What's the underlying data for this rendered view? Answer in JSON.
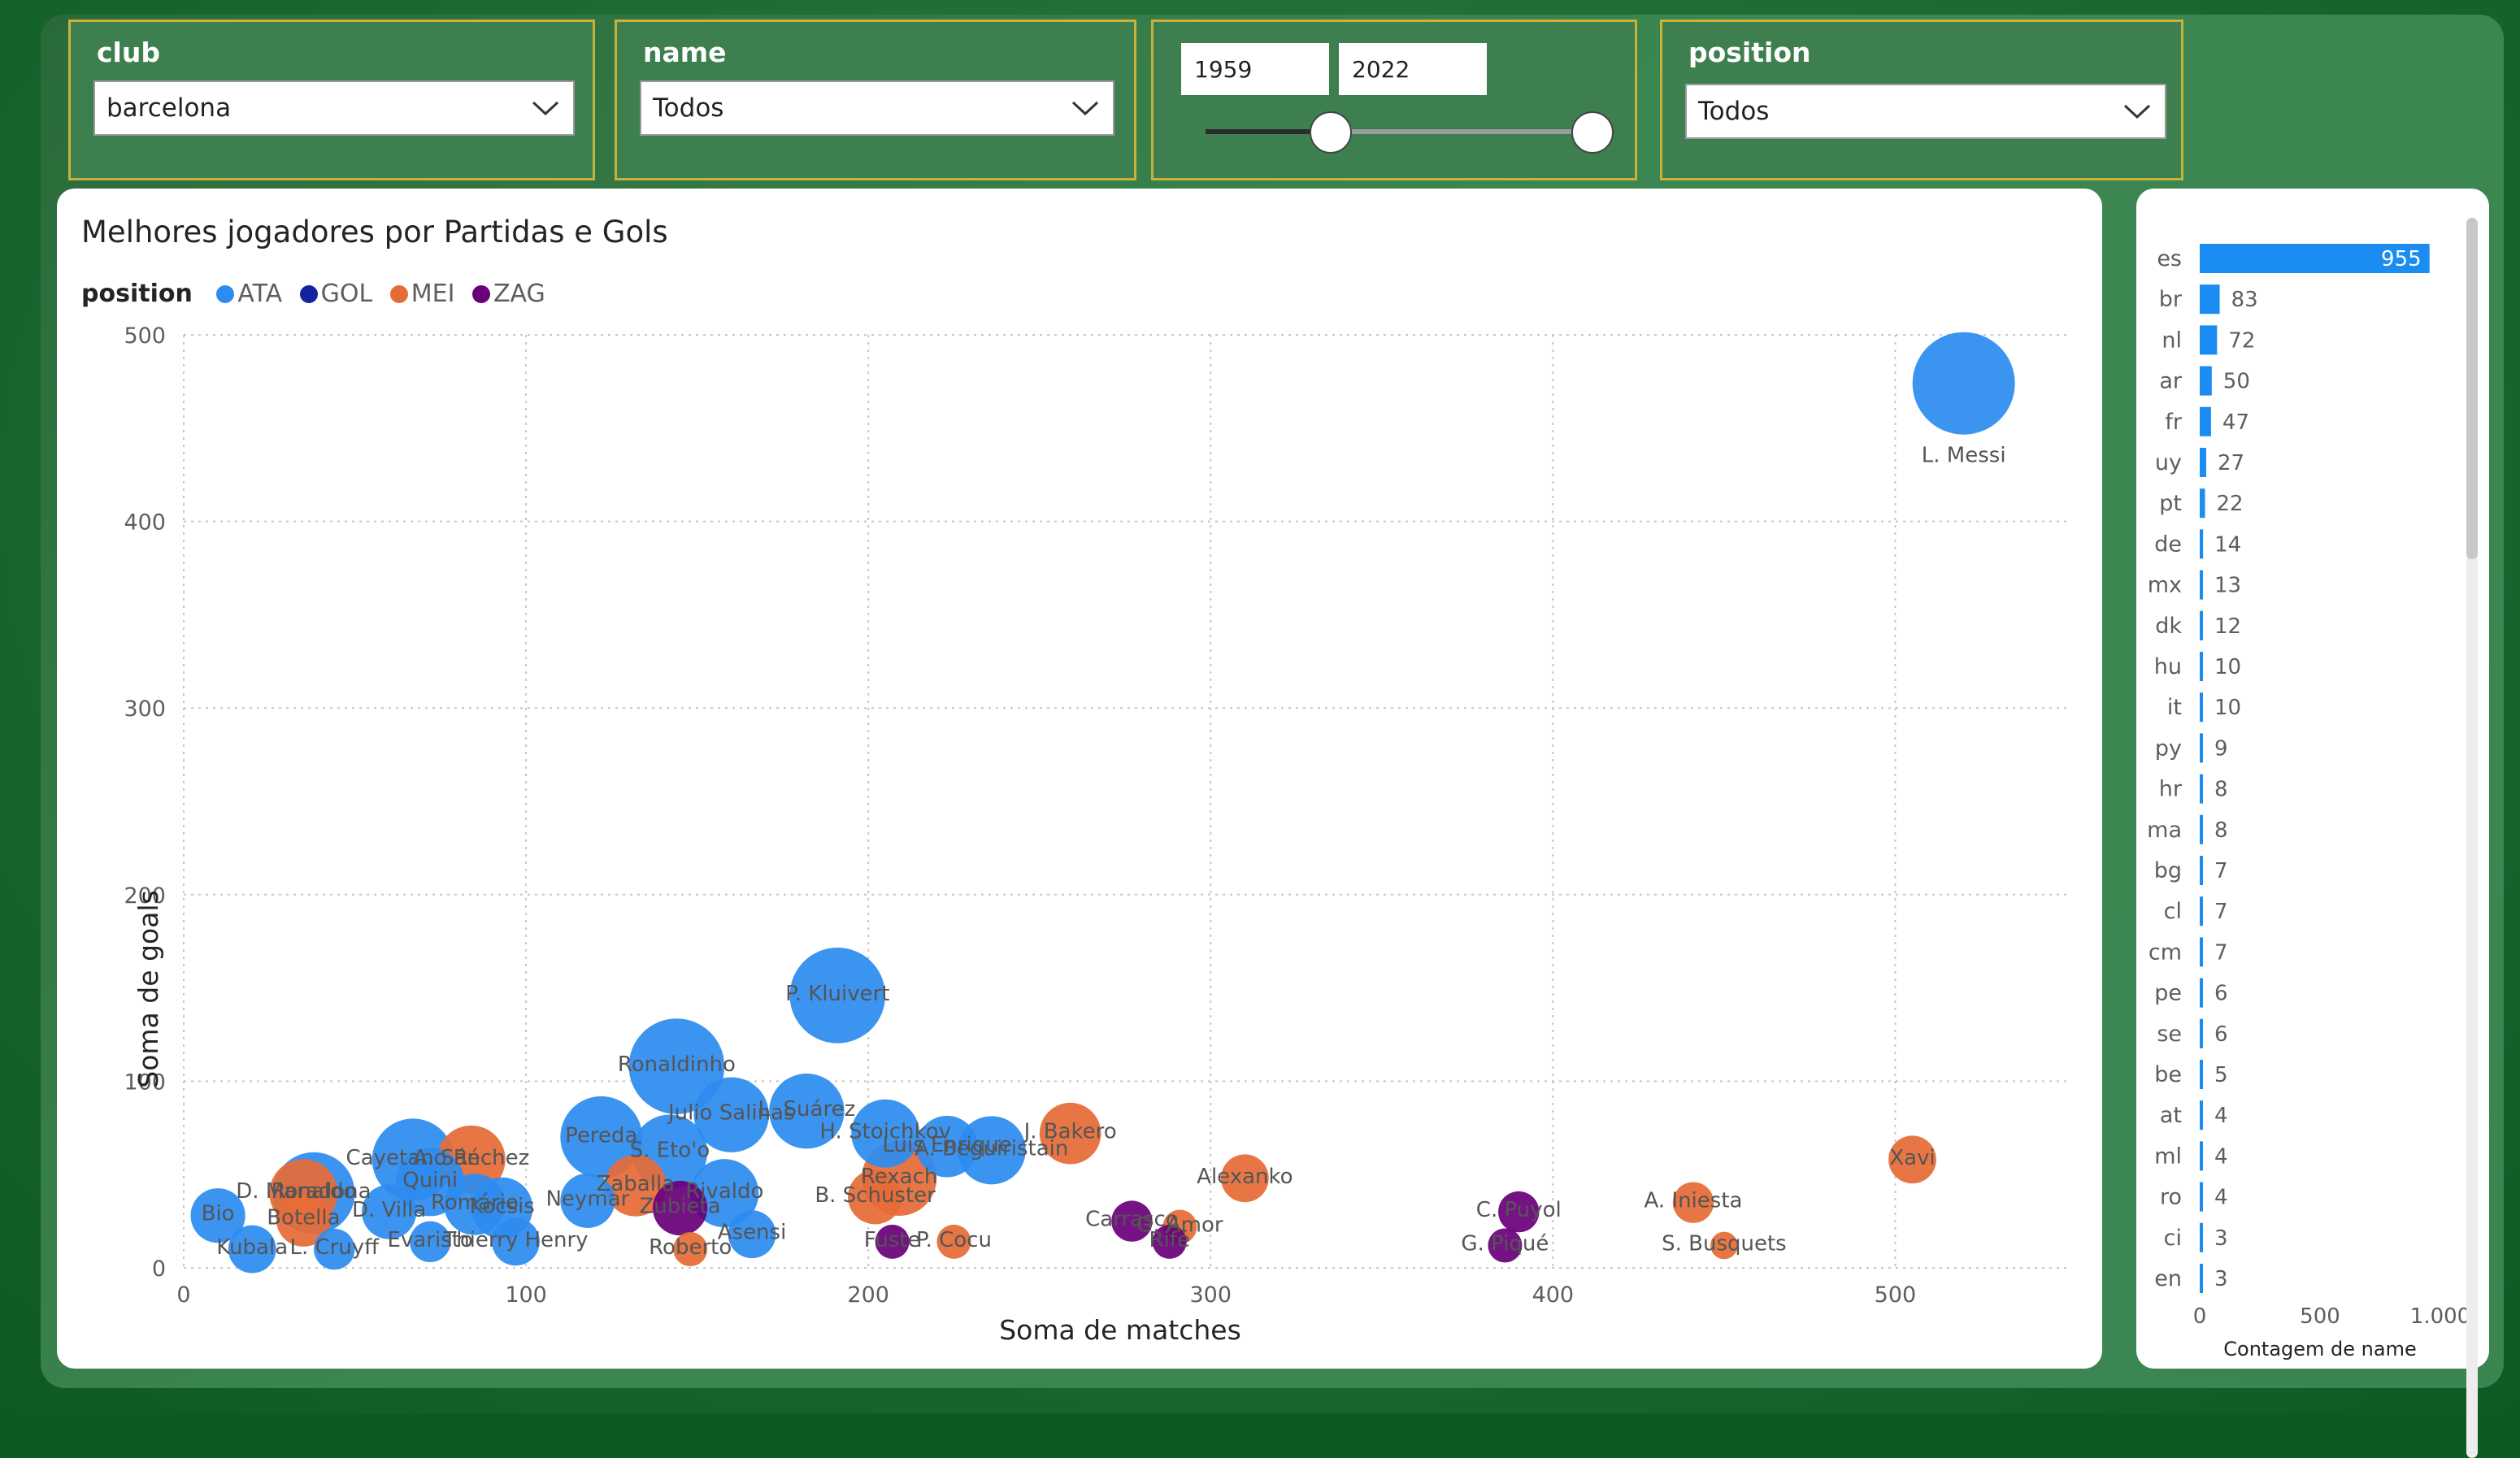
{
  "filters": {
    "club": {
      "title": "club",
      "value": "barcelona"
    },
    "name": {
      "title": "name",
      "value": "Todos"
    },
    "years": {
      "start": "1959",
      "end": "2022",
      "range": [
        1959,
        2022
      ],
      "selected_start": 1959,
      "selected_end": 2022
    },
    "position": {
      "title": "position",
      "value": "Todos"
    }
  },
  "colors": {
    "ATA": "#2d8cf0",
    "GOL": "#12239e",
    "MEI": "#e66c37",
    "ZAG": "#6b007b",
    "bar": "#1a8cf2"
  },
  "bubble_chart": {
    "title": "Melhores jogadores por Partidas e Gols",
    "legend_title": "position",
    "legend": [
      "ATA",
      "GOL",
      "MEI",
      "ZAG"
    ],
    "xlabel": "Soma de matches",
    "ylabel": "Soma de goals"
  },
  "nat_chart": {
    "xlabel": "Contagem de name"
  },
  "chart_data": [
    {
      "type": "scatter",
      "title": "Melhores jogadores por Partidas e Gols",
      "xlabel": "Soma de matches",
      "ylabel": "Soma de goals",
      "xlim": [
        0,
        550
      ],
      "ylim": [
        0,
        500
      ],
      "xticks": [
        "0",
        "100",
        "200",
        "300",
        "400",
        "500"
      ],
      "yticks": [
        "0",
        "100",
        "200",
        "300",
        "400",
        "500"
      ],
      "points": [
        {
          "label": "L. Messi",
          "x": 520,
          "y": 474,
          "position": "ATA",
          "size": 30
        },
        {
          "label": "P. Kluivert",
          "x": 191,
          "y": 146,
          "position": "ATA",
          "size": 28
        },
        {
          "label": "Ronaldinho",
          "x": 144,
          "y": 108,
          "position": "ATA",
          "size": 28
        },
        {
          "label": "L. Suárez",
          "x": 182,
          "y": 84,
          "position": "ATA",
          "size": 22
        },
        {
          "label": "Julio Salinas",
          "x": 160,
          "y": 82,
          "position": "ATA",
          "size": 22
        },
        {
          "label": "Pereda",
          "x": 122,
          "y": 70,
          "position": "ATA",
          "size": 24
        },
        {
          "label": "S. Eto'o",
          "x": 142,
          "y": 62,
          "position": "ATA",
          "size": 22
        },
        {
          "label": "H. Stoichkov",
          "x": 205,
          "y": 72,
          "position": "ATA",
          "size": 20
        },
        {
          "label": "Luis Enrique",
          "x": 223,
          "y": 65,
          "position": "ATA",
          "size": 18
        },
        {
          "label": "A. Beguiristain",
          "x": 236,
          "y": 63,
          "position": "ATA",
          "size": 20
        },
        {
          "label": "J. Bakero",
          "x": 259,
          "y": 72,
          "position": "MEI",
          "size": 18
        },
        {
          "label": "Rexach",
          "x": 209,
          "y": 48,
          "position": "MEI",
          "size": 22
        },
        {
          "label": "B. Schuster",
          "x": 202,
          "y": 38,
          "position": "MEI",
          "size": 16
        },
        {
          "label": "Cayetano Ré",
          "x": 67,
          "y": 58,
          "position": "ATA",
          "size": 24
        },
        {
          "label": "A. Sánchez",
          "x": 84,
          "y": 58,
          "position": "MEI",
          "size": 20
        },
        {
          "label": "Ronaldo",
          "x": 38,
          "y": 40,
          "position": "ATA",
          "size": 24
        },
        {
          "label": "D. Maradona",
          "x": 35,
          "y": 40,
          "position": "MEI",
          "size": 20
        },
        {
          "label": "Quini",
          "x": 72,
          "y": 46,
          "position": "ATA",
          "size": 20
        },
        {
          "label": "Kocsis",
          "x": 93,
          "y": 32,
          "position": "ATA",
          "size": 18
        },
        {
          "label": "Zaballa",
          "x": 132,
          "y": 44,
          "position": "MEI",
          "size": 18
        },
        {
          "label": "Rivaldo",
          "x": 158,
          "y": 40,
          "position": "ATA",
          "size": 20
        },
        {
          "label": "Neymar",
          "x": 118,
          "y": 36,
          "position": "ATA",
          "size": 16
        },
        {
          "label": "Zubieta",
          "x": 145,
          "y": 32,
          "position": "ZAG",
          "size": 16
        },
        {
          "label": "Asensi",
          "x": 166,
          "y": 18,
          "position": "ATA",
          "size": 14
        },
        {
          "label": "Romário",
          "x": 85,
          "y": 34,
          "position": "ATA",
          "size": 18
        },
        {
          "label": "D. Villa",
          "x": 60,
          "y": 30,
          "position": "ATA",
          "size": 16
        },
        {
          "label": "Botella",
          "x": 35,
          "y": 26,
          "position": "MEI",
          "size": 16
        },
        {
          "label": "Bio",
          "x": 10,
          "y": 28,
          "position": "ATA",
          "size": 16
        },
        {
          "label": "Alexanko",
          "x": 310,
          "y": 48,
          "position": "MEI",
          "size": 14
        },
        {
          "label": "Carrasco",
          "x": 277,
          "y": 25,
          "position": "ZAG",
          "size": 12
        },
        {
          "label": "G. Amor",
          "x": 291,
          "y": 22,
          "position": "MEI",
          "size": 10
        },
        {
          "label": "Fuste",
          "x": 207,
          "y": 14,
          "position": "ZAG",
          "size": 10
        },
        {
          "label": "P. Cocu",
          "x": 225,
          "y": 14,
          "position": "MEI",
          "size": 10
        },
        {
          "label": "Rifé",
          "x": 288,
          "y": 14,
          "position": "ZAG",
          "size": 10
        },
        {
          "label": "C. Puyol",
          "x": 390,
          "y": 30,
          "position": "ZAG",
          "size": 12
        },
        {
          "label": "G. Piqué",
          "x": 386,
          "y": 12,
          "position": "ZAG",
          "size": 10
        },
        {
          "label": "Xavi",
          "x": 505,
          "y": 58,
          "position": "MEI",
          "size": 14
        },
        {
          "label": "A. Iniesta",
          "x": 441,
          "y": 35,
          "position": "MEI",
          "size": 12
        },
        {
          "label": "S. Busquets",
          "x": 450,
          "y": 12,
          "position": "MEI",
          "size": 8
        },
        {
          "label": "Thierry Henry",
          "x": 97,
          "y": 14,
          "position": "ATA",
          "size": 14
        },
        {
          "label": "Evaristo",
          "x": 72,
          "y": 14,
          "position": "ATA",
          "size": 12
        },
        {
          "label": "Kubala",
          "x": 20,
          "y": 10,
          "position": "ATA",
          "size": 14
        },
        {
          "label": "L. Cruyff",
          "x": 44,
          "y": 10,
          "position": "ATA",
          "size": 12
        },
        {
          "label": "Roberto",
          "x": 148,
          "y": 10,
          "position": "MEI",
          "size": 10
        }
      ]
    },
    {
      "type": "bar",
      "orientation": "horizontal",
      "categories": [
        "es",
        "br",
        "nl",
        "ar",
        "fr",
        "uy",
        "pt",
        "de",
        "mx",
        "dk",
        "hu",
        "it",
        "py",
        "hr",
        "ma",
        "bg",
        "cl",
        "cm",
        "pe",
        "se",
        "be",
        "at",
        "ml",
        "ro",
        "ci",
        "en"
      ],
      "values": [
        955,
        83,
        72,
        50,
        47,
        27,
        22,
        14,
        13,
        12,
        10,
        10,
        9,
        8,
        8,
        7,
        7,
        7,
        6,
        6,
        5,
        4,
        4,
        4,
        3,
        3
      ],
      "value_labels": [
        "955",
        "83",
        "72",
        "50",
        "47",
        "27",
        "22",
        "14",
        "13",
        "12",
        "10",
        "10",
        "9",
        "8",
        "8",
        "7",
        "7",
        "7",
        "6",
        "6",
        "5",
        "4",
        "4",
        "4",
        "3",
        "3"
      ],
      "xlabel": "Contagem de name",
      "xlim": [
        0,
        1000
      ],
      "xticks": [
        "0",
        "500",
        "1.000"
      ]
    }
  ]
}
